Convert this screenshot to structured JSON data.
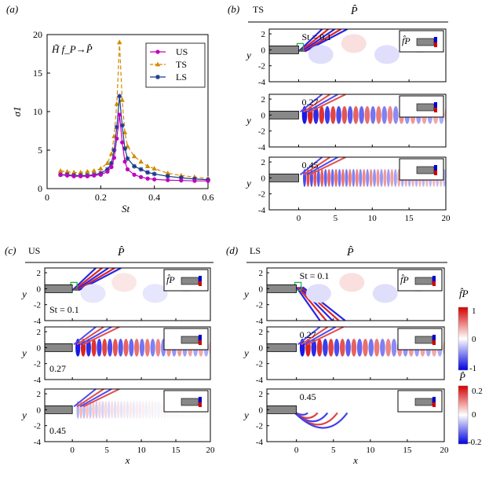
{
  "panels": {
    "a": {
      "label": "(a)"
    },
    "b": {
      "label": "(b)",
      "case": "TS",
      "title": "P̂"
    },
    "c": {
      "label": "(c)",
      "case": "US",
      "title": "P̂"
    },
    "d": {
      "label": "(d)",
      "case": "LS",
      "title": "P̂"
    }
  },
  "chart_data": {
    "type": "line",
    "annotation": "H̃ f_P→P̂",
    "xlabel": "St",
    "ylabel": "σ1",
    "xlim": [
      0,
      0.6
    ],
    "ylim": [
      0,
      20
    ],
    "xticks": [
      "0",
      "0.2",
      "0.4",
      "0.6"
    ],
    "yticks": [
      "0",
      "5",
      "10",
      "15",
      "20"
    ],
    "legend_position": "top-right",
    "grid": false,
    "x": [
      0.05,
      0.075,
      0.1,
      0.125,
      0.15,
      0.175,
      0.2,
      0.225,
      0.24,
      0.25,
      0.26,
      0.27,
      0.28,
      0.29,
      0.3,
      0.325,
      0.35,
      0.375,
      0.4,
      0.45,
      0.5,
      0.55,
      0.6
    ],
    "series": [
      {
        "name": "US",
        "color": "#c000c0",
        "marker": "circle",
        "dash": false,
        "values": [
          1.8,
          1.7,
          1.6,
          1.6,
          1.6,
          1.7,
          1.8,
          2.2,
          2.8,
          4.0,
          6.5,
          9.6,
          6.0,
          3.5,
          2.5,
          1.8,
          1.5,
          1.3,
          1.2,
          1.1,
          1.05,
          1.0,
          1.0
        ]
      },
      {
        "name": "TS",
        "color": "#d08a00",
        "marker": "triangle",
        "dash": true,
        "values": [
          2.3,
          2.2,
          2.1,
          2.1,
          2.2,
          2.3,
          2.6,
          3.3,
          4.5,
          6.8,
          11.0,
          19.0,
          11.5,
          7.3,
          5.5,
          4.2,
          3.5,
          2.9,
          2.6,
          2.0,
          1.7,
          1.5,
          1.3
        ]
      },
      {
        "name": "LS",
        "color": "#1a3a8a",
        "marker": "star",
        "dash": false,
        "values": [
          1.8,
          1.8,
          1.7,
          1.7,
          1.7,
          1.8,
          2.0,
          2.5,
          3.3,
          5.0,
          8.0,
          12.0,
          8.2,
          5.2,
          3.9,
          2.9,
          2.5,
          2.1,
          1.9,
          1.6,
          1.4,
          1.25,
          1.15
        ]
      }
    ]
  },
  "field_axes": {
    "xlabel": "x",
    "ylabel": "y",
    "xticks": [
      "0",
      "5",
      "10",
      "15",
      "20"
    ],
    "yticks": [
      "2",
      "0",
      "-2",
      "-4"
    ],
    "xlim": [
      -4,
      20
    ],
    "ylim": [
      -4,
      2.6
    ]
  },
  "rows": {
    "b": [
      {
        "st": "St = 0.1",
        "inset_label": "f̂P",
        "wavelength": 2.6,
        "amp": 0.25,
        "mode": "shear"
      },
      {
        "st": "0.27",
        "wavelength": 1.55,
        "amp": 0.95,
        "mode": "wave"
      },
      {
        "st": "0.45",
        "wavelength": 0.95,
        "amp": 0.75,
        "mode": "wave"
      }
    ],
    "c": [
      {
        "st": "St = 0.1",
        "inset_label": "f̂P",
        "wavelength": 2.6,
        "amp": 0.2,
        "mode": "shear"
      },
      {
        "st": "0.27",
        "wavelength": 1.55,
        "amp": 0.95,
        "mode": "wave"
      },
      {
        "st": "0.45",
        "wavelength": 0.9,
        "amp": 0.35,
        "mode": "wave"
      }
    ],
    "d": [
      {
        "st": "St = 0.1",
        "inset_label": "f̂P",
        "wavelength": 2.6,
        "amp": 0.25,
        "mode": "shear"
      },
      {
        "st": "0.27",
        "wavelength": 1.55,
        "amp": 0.95,
        "mode": "wave"
      },
      {
        "st": "0.45",
        "wavelength": 1.0,
        "amp": 0.4,
        "mode": "arc"
      }
    ]
  },
  "colorbars": [
    {
      "label": "f̂P",
      "ticks": [
        "1",
        "0",
        "-1"
      ]
    },
    {
      "label": "P̂",
      "ticks": [
        "0.2",
        "0",
        "-0.2"
      ]
    }
  ]
}
